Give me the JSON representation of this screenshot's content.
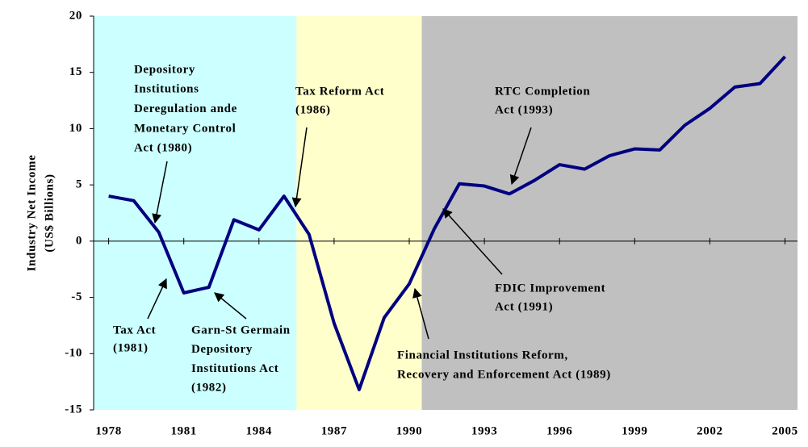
{
  "chart_data": {
    "type": "line",
    "y_label": [
      "Industry Net Income",
      "(US$ Billions)"
    ],
    "x": [
      1978,
      1979,
      1980,
      1981,
      1982,
      1983,
      1984,
      1985,
      1986,
      1987,
      1988,
      1989,
      1990,
      1991,
      1992,
      1993,
      1994,
      1995,
      1996,
      1997,
      1998,
      1999,
      2000,
      2001,
      2002,
      2003,
      2004,
      2005
    ],
    "series": [
      {
        "color": "#000080",
        "values": [
          4.0,
          3.6,
          0.8,
          -4.6,
          -4.1,
          1.9,
          1.0,
          4.0,
          0.6,
          -7.3,
          -13.2,
          -6.8,
          -3.8,
          1.1,
          5.1,
          4.9,
          4.2,
          5.4,
          6.8,
          6.4,
          7.6,
          8.2,
          8.1,
          10.3,
          11.8,
          13.7,
          14.0,
          16.4
        ]
      }
    ],
    "xlim": [
      1977.4,
      2005.5
    ],
    "xticks": [
      1978,
      1981,
      1984,
      1987,
      1990,
      1993,
      1996,
      1999,
      2002,
      2005
    ],
    "ylim": [
      -15,
      20
    ],
    "yticks": [
      -15,
      -10,
      -5,
      0,
      5,
      10,
      15,
      20
    ],
    "shaded_regions": [
      {
        "from": 1977.4,
        "to": 1985.5,
        "color": "#ccffff"
      },
      {
        "from": 1985.5,
        "to": 1990.5,
        "color": "#ffffcc"
      },
      {
        "from": 1990.5,
        "to": 2005.5,
        "color": "#c0c0c0"
      }
    ],
    "annotations": [
      {
        "lines": [
          "Depository",
          "Institutions",
          "Deregulation ande",
          "Monetary Control",
          "Act (1980)"
        ]
      },
      {
        "lines": [
          "Tax Act",
          "(1981)"
        ]
      },
      {
        "lines": [
          "Garn-St Germain",
          "Depository",
          "Institutions Act",
          "(1982)"
        ]
      },
      {
        "lines": [
          "Tax Reform Act",
          "(1986)"
        ]
      },
      {
        "lines": [
          "RTC Completion",
          "Act (1993)"
        ]
      },
      {
        "lines": [
          "FDIC Improvement",
          "Act (1991)"
        ]
      },
      {
        "lines": [
          "Financial Institutions Reform,",
          "Recovery and Enforcement Act (1989)"
        ]
      }
    ]
  }
}
